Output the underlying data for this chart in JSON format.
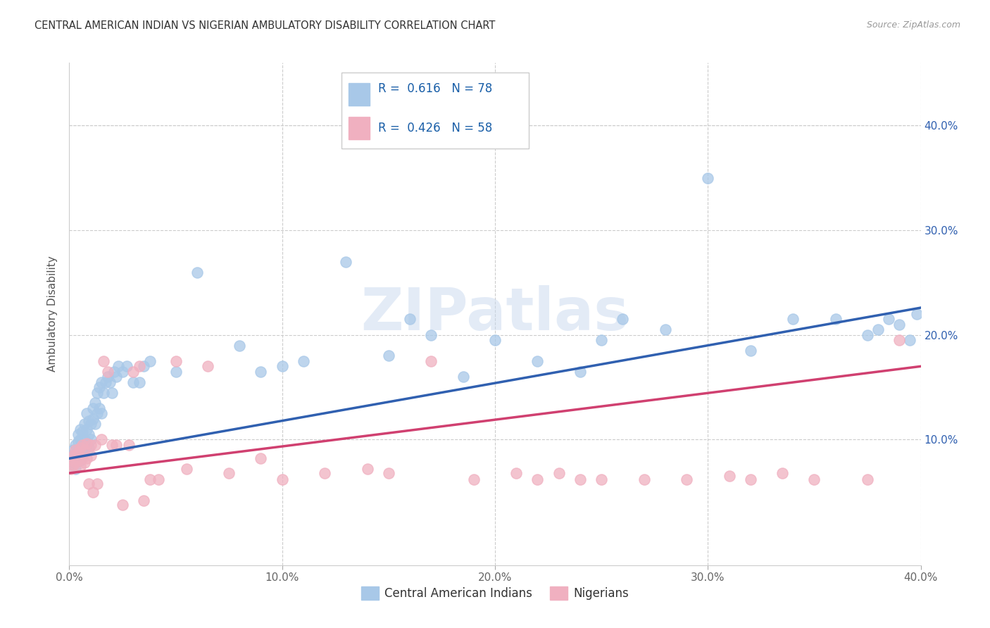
{
  "title": "CENTRAL AMERICAN INDIAN VS NIGERIAN AMBULATORY DISABILITY CORRELATION CHART",
  "source": "Source: ZipAtlas.com",
  "ylabel": "Ambulatory Disability",
  "xlim": [
    0.0,
    0.4
  ],
  "ylim": [
    -0.02,
    0.46
  ],
  "xticks": [
    0.0,
    0.1,
    0.2,
    0.3,
    0.4
  ],
  "yticks": [
    0.1,
    0.2,
    0.3,
    0.4
  ],
  "xticklabels": [
    "0.0%",
    "10.0%",
    "20.0%",
    "30.0%",
    "40.0%"
  ],
  "right_yticklabels": [
    "10.0%",
    "20.0%",
    "30.0%",
    "40.0%"
  ],
  "right_yticks": [
    0.1,
    0.2,
    0.3,
    0.4
  ],
  "blue_scatter_color": "#a8c8e8",
  "pink_scatter_color": "#f0b0c0",
  "blue_line_color": "#3060b0",
  "pink_line_color": "#d04070",
  "title_color": "#333333",
  "source_color": "#999999",
  "legend_text_color": "#1a5fa8",
  "R_blue": 0.616,
  "N_blue": 78,
  "R_pink": 0.426,
  "N_pink": 58,
  "watermark": "ZIPatlas",
  "blue_line_intercept": 0.082,
  "blue_line_slope": 0.36,
  "pink_line_intercept": 0.068,
  "pink_line_slope": 0.255,
  "blue_scatter_x": [
    0.001,
    0.002,
    0.002,
    0.003,
    0.003,
    0.003,
    0.004,
    0.004,
    0.004,
    0.005,
    0.005,
    0.005,
    0.005,
    0.006,
    0.006,
    0.006,
    0.007,
    0.007,
    0.007,
    0.008,
    0.008,
    0.008,
    0.009,
    0.009,
    0.009,
    0.01,
    0.01,
    0.011,
    0.011,
    0.012,
    0.012,
    0.013,
    0.013,
    0.014,
    0.014,
    0.015,
    0.015,
    0.016,
    0.017,
    0.018,
    0.019,
    0.02,
    0.021,
    0.022,
    0.023,
    0.025,
    0.027,
    0.03,
    0.033,
    0.035,
    0.038,
    0.05,
    0.06,
    0.08,
    0.09,
    0.1,
    0.11,
    0.13,
    0.15,
    0.16,
    0.17,
    0.185,
    0.2,
    0.22,
    0.24,
    0.25,
    0.26,
    0.28,
    0.3,
    0.32,
    0.34,
    0.36,
    0.375,
    0.38,
    0.385,
    0.39,
    0.395,
    0.398
  ],
  "blue_scatter_y": [
    0.085,
    0.078,
    0.09,
    0.082,
    0.095,
    0.072,
    0.088,
    0.098,
    0.105,
    0.08,
    0.092,
    0.1,
    0.11,
    0.086,
    0.095,
    0.108,
    0.09,
    0.1,
    0.115,
    0.095,
    0.11,
    0.125,
    0.092,
    0.105,
    0.118,
    0.1,
    0.115,
    0.12,
    0.13,
    0.115,
    0.135,
    0.125,
    0.145,
    0.13,
    0.15,
    0.125,
    0.155,
    0.145,
    0.155,
    0.16,
    0.155,
    0.145,
    0.165,
    0.16,
    0.17,
    0.165,
    0.17,
    0.155,
    0.155,
    0.17,
    0.175,
    0.165,
    0.26,
    0.19,
    0.165,
    0.17,
    0.175,
    0.27,
    0.18,
    0.215,
    0.2,
    0.16,
    0.195,
    0.175,
    0.165,
    0.195,
    0.215,
    0.205,
    0.35,
    0.185,
    0.215,
    0.215,
    0.2,
    0.205,
    0.215,
    0.21,
    0.195,
    0.22
  ],
  "pink_scatter_x": [
    0.001,
    0.001,
    0.002,
    0.002,
    0.003,
    0.003,
    0.004,
    0.004,
    0.005,
    0.005,
    0.006,
    0.006,
    0.007,
    0.007,
    0.008,
    0.008,
    0.009,
    0.01,
    0.01,
    0.011,
    0.012,
    0.013,
    0.015,
    0.016,
    0.018,
    0.02,
    0.022,
    0.025,
    0.028,
    0.03,
    0.033,
    0.035,
    0.038,
    0.042,
    0.05,
    0.055,
    0.065,
    0.075,
    0.09,
    0.1,
    0.12,
    0.14,
    0.15,
    0.17,
    0.19,
    0.21,
    0.22,
    0.23,
    0.24,
    0.25,
    0.27,
    0.29,
    0.31,
    0.32,
    0.335,
    0.35,
    0.375,
    0.39
  ],
  "pink_scatter_y": [
    0.082,
    0.072,
    0.076,
    0.085,
    0.078,
    0.09,
    0.08,
    0.088,
    0.075,
    0.092,
    0.082,
    0.095,
    0.078,
    0.09,
    0.082,
    0.096,
    0.058,
    0.085,
    0.095,
    0.05,
    0.095,
    0.058,
    0.1,
    0.175,
    0.165,
    0.095,
    0.095,
    0.038,
    0.095,
    0.165,
    0.17,
    0.042,
    0.062,
    0.062,
    0.175,
    0.072,
    0.17,
    0.068,
    0.082,
    0.062,
    0.068,
    0.072,
    0.068,
    0.175,
    0.062,
    0.068,
    0.062,
    0.068,
    0.062,
    0.062,
    0.062,
    0.062,
    0.065,
    0.062,
    0.068,
    0.062,
    0.062,
    0.195
  ]
}
